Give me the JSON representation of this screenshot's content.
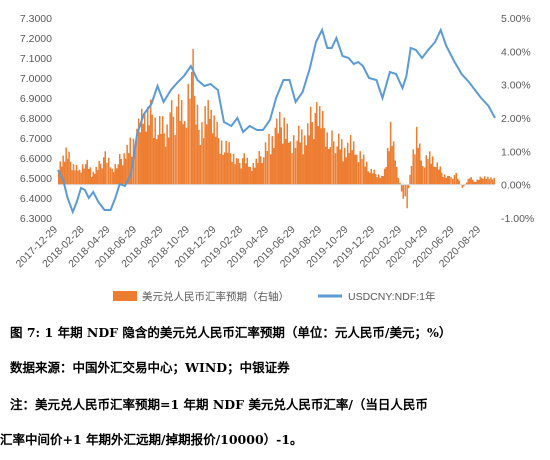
{
  "chart_data": {
    "type": "bar+line",
    "title": "",
    "left_axis": {
      "min": 6.3,
      "max": 7.3,
      "ticks": [
        "6.3000",
        "6.4000",
        "6.5000",
        "6.6000",
        "6.7000",
        "6.8000",
        "6.9000",
        "7.0000",
        "7.1000",
        "7.2000",
        "7.3000"
      ]
    },
    "right_axis": {
      "min": -1.0,
      "max": 5.0,
      "ticks": [
        "-1.00%",
        "0.00%",
        "1.00%",
        "2.00%",
        "3.00%",
        "4.00%",
        "5.00%"
      ]
    },
    "x_ticks": [
      "2017-12-29",
      "2018-02-28",
      "2018-04-29",
      "2018-06-29",
      "2018-08-29",
      "2018-10-29",
      "2018-12-29",
      "2019-02-28",
      "2019-04-29",
      "2019-06-29",
      "2019-08-29",
      "2019-10-29",
      "2019-12-29",
      "2020-02-29",
      "2020-04-29",
      "2020-06-29",
      "2020-08-29"
    ],
    "x_range": [
      "2017-12-29",
      "2020-09-30"
    ],
    "legend_position": "bottom",
    "grid": false,
    "series": [
      {
        "name": "美元兑人民币汇率预期（右轴）",
        "kind": "bar",
        "axis": "right",
        "color": "#ED7D31",
        "points": [
          [
            "2017-12-29",
            0.6
          ],
          [
            "2018-01-15",
            0.9
          ],
          [
            "2018-02-01",
            0.55
          ],
          [
            "2018-02-15",
            0.45
          ],
          [
            "2018-03-01",
            0.7
          ],
          [
            "2018-03-15",
            0.3
          ],
          [
            "2018-04-01",
            0.55
          ],
          [
            "2018-04-15",
            0.85
          ],
          [
            "2018-05-01",
            0.45
          ],
          [
            "2018-05-15",
            0.65
          ],
          [
            "2018-06-01",
            0.95
          ],
          [
            "2018-06-15",
            1.2
          ],
          [
            "2018-07-01",
            1.6
          ],
          [
            "2018-07-15",
            1.9
          ],
          [
            "2018-08-01",
            2.1
          ],
          [
            "2018-08-15",
            1.7
          ],
          [
            "2018-09-01",
            1.5
          ],
          [
            "2018-09-15",
            1.95
          ],
          [
            "2018-10-01",
            2.3
          ],
          [
            "2018-10-15",
            1.8
          ],
          [
            "2018-10-31",
            3.6
          ],
          [
            "2018-11-10",
            2.2
          ],
          [
            "2018-11-20",
            1.7
          ],
          [
            "2018-12-01",
            1.9
          ],
          [
            "2018-12-15",
            2.0
          ],
          [
            "2019-01-01",
            1.4
          ],
          [
            "2019-01-15",
            1.1
          ],
          [
            "2019-02-01",
            0.9
          ],
          [
            "2019-02-15",
            0.6
          ],
          [
            "2019-03-01",
            0.8
          ],
          [
            "2019-03-15",
            0.5
          ],
          [
            "2019-04-01",
            0.7
          ],
          [
            "2019-04-15",
            1.0
          ],
          [
            "2019-05-01",
            1.3
          ],
          [
            "2019-05-15",
            1.6
          ],
          [
            "2019-06-01",
            1.8
          ],
          [
            "2019-06-15",
            1.3
          ],
          [
            "2019-07-01",
            1.5
          ],
          [
            "2019-07-15",
            1.2
          ],
          [
            "2019-08-01",
            1.8
          ],
          [
            "2019-08-15",
            2.1
          ],
          [
            "2019-09-01",
            1.6
          ],
          [
            "2019-09-15",
            1.2
          ],
          [
            "2019-10-01",
            1.4
          ],
          [
            "2019-10-15",
            1.0
          ],
          [
            "2019-11-01",
            1.2
          ],
          [
            "2019-11-15",
            0.8
          ],
          [
            "2019-12-01",
            0.9
          ],
          [
            "2019-12-15",
            0.4
          ],
          [
            "2020-01-01",
            0.3
          ],
          [
            "2020-01-15",
            0.2
          ],
          [
            "2020-02-01",
            1.6
          ],
          [
            "2020-02-15",
            0.5
          ],
          [
            "2020-03-01",
            -0.4
          ],
          [
            "2020-03-10",
            -0.6
          ],
          [
            "2020-03-20",
            0.8
          ],
          [
            "2020-04-01",
            1.4
          ],
          [
            "2020-04-15",
            0.5
          ],
          [
            "2020-05-01",
            1.0
          ],
          [
            "2020-05-15",
            0.6
          ],
          [
            "2020-06-01",
            0.3
          ],
          [
            "2020-06-15",
            0.2
          ],
          [
            "2020-07-01",
            0.3
          ],
          [
            "2020-07-15",
            -0.1
          ],
          [
            "2020-08-01",
            0.2
          ],
          [
            "2020-08-15",
            0.1
          ],
          [
            "2020-09-01",
            0.25
          ],
          [
            "2020-09-30",
            0.15
          ]
        ]
      },
      {
        "name": "USDCNY:NDF:1年",
        "kind": "line",
        "axis": "left",
        "color": "#5B9BD5",
        "points": [
          [
            "2017-12-29",
            6.54
          ],
          [
            "2018-01-10",
            6.49
          ],
          [
            "2018-01-20",
            6.4
          ],
          [
            "2018-02-01",
            6.33
          ],
          [
            "2018-02-10",
            6.38
          ],
          [
            "2018-02-20",
            6.45
          ],
          [
            "2018-03-01",
            6.44
          ],
          [
            "2018-03-10",
            6.4
          ],
          [
            "2018-03-20",
            6.43
          ],
          [
            "2018-04-01",
            6.38
          ],
          [
            "2018-04-15",
            6.34
          ],
          [
            "2018-04-29",
            6.34
          ],
          [
            "2018-05-10",
            6.4
          ],
          [
            "2018-05-20",
            6.47
          ],
          [
            "2018-06-01",
            6.46
          ],
          [
            "2018-06-15",
            6.52
          ],
          [
            "2018-06-29",
            6.72
          ],
          [
            "2018-07-15",
            6.82
          ],
          [
            "2018-08-01",
            6.87
          ],
          [
            "2018-08-15",
            6.96
          ],
          [
            "2018-08-29",
            6.88
          ],
          [
            "2018-09-15",
            6.94
          ],
          [
            "2018-10-01",
            6.98
          ],
          [
            "2018-10-15",
            7.01
          ],
          [
            "2018-10-31",
            7.06
          ],
          [
            "2018-11-15",
            6.99
          ],
          [
            "2018-12-01",
            6.96
          ],
          [
            "2018-12-15",
            6.97
          ],
          [
            "2019-01-01",
            6.94
          ],
          [
            "2019-01-15",
            6.78
          ],
          [
            "2019-02-01",
            6.76
          ],
          [
            "2019-02-15",
            6.8
          ],
          [
            "2019-02-28",
            6.73
          ],
          [
            "2019-03-15",
            6.76
          ],
          [
            "2019-04-01",
            6.74
          ],
          [
            "2019-04-15",
            6.74
          ],
          [
            "2019-05-01",
            6.79
          ],
          [
            "2019-05-15",
            6.9
          ],
          [
            "2019-06-01",
            6.99
          ],
          [
            "2019-06-15",
            6.99
          ],
          [
            "2019-06-29",
            6.88
          ],
          [
            "2019-07-15",
            6.93
          ],
          [
            "2019-08-01",
            7.05
          ],
          [
            "2019-08-15",
            7.18
          ],
          [
            "2019-08-29",
            7.24
          ],
          [
            "2019-09-10",
            7.15
          ],
          [
            "2019-09-20",
            7.15
          ],
          [
            "2019-10-01",
            7.2
          ],
          [
            "2019-10-15",
            7.11
          ],
          [
            "2019-10-29",
            7.1
          ],
          [
            "2019-11-10",
            7.07
          ],
          [
            "2019-11-20",
            7.08
          ],
          [
            "2019-12-01",
            7.06
          ],
          [
            "2019-12-15",
            7.0
          ],
          [
            "2020-01-01",
            6.99
          ],
          [
            "2020-01-15",
            6.9
          ],
          [
            "2020-02-01",
            7.03
          ],
          [
            "2020-02-15",
            7.02
          ],
          [
            "2020-03-01",
            6.95
          ],
          [
            "2020-03-10",
            7.01
          ],
          [
            "2020-03-20",
            7.15
          ],
          [
            "2020-04-01",
            7.14
          ],
          [
            "2020-04-15",
            7.1
          ],
          [
            "2020-04-29",
            7.14
          ],
          [
            "2020-05-15",
            7.18
          ],
          [
            "2020-05-28",
            7.24
          ],
          [
            "2020-06-10",
            7.16
          ],
          [
            "2020-06-29",
            7.08
          ],
          [
            "2020-07-15",
            7.02
          ],
          [
            "2020-08-01",
            6.98
          ],
          [
            "2020-08-15",
            6.94
          ],
          [
            "2020-08-29",
            6.9
          ],
          [
            "2020-09-15",
            6.86
          ],
          [
            "2020-09-30",
            6.8
          ]
        ]
      }
    ]
  },
  "caption": {
    "title": "图 7: 1 年期 NDF 隐含的美元兑人民币汇率预期（单位：元人民币/美元；%）",
    "source": "数据来源：中国外汇交易中心；WIND；中银证券",
    "note_line1": "注：美元兑人民币汇率预期=1 年期 NDF 美元兑人民币汇率/（当日人民币",
    "note_line2": "汇率中间价+1 年期外汇远期/掉期报价/10000）-1。"
  }
}
